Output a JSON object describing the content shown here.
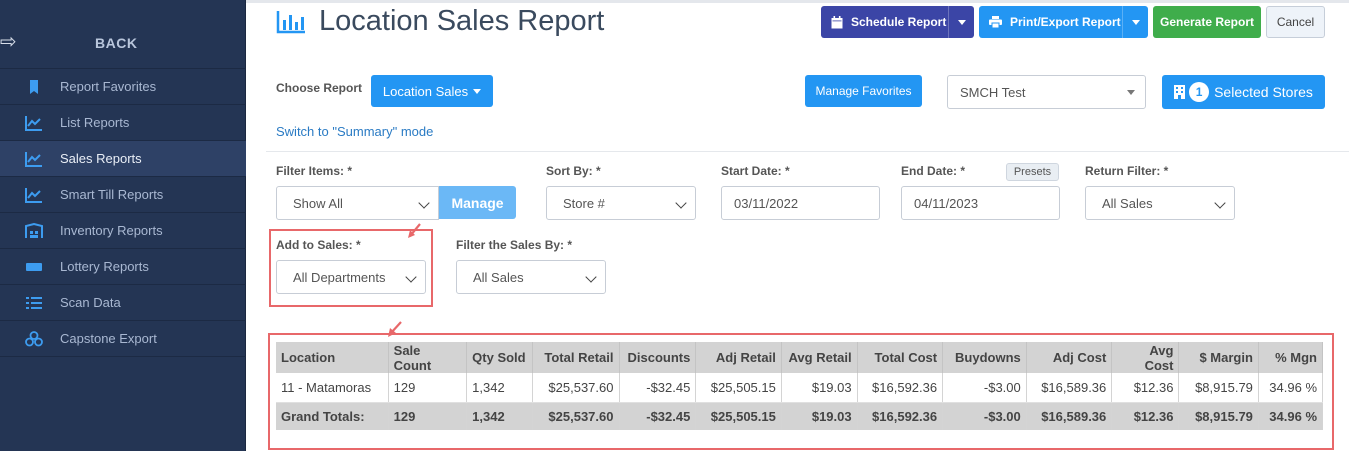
{
  "sidebar": {
    "back_label": "BACK",
    "items": [
      {
        "label": "Report Favorites",
        "icon": "bookmark-icon",
        "active": false
      },
      {
        "label": "List Reports",
        "icon": "line-chart-icon",
        "active": false
      },
      {
        "label": "Sales Reports",
        "icon": "line-chart-icon",
        "active": true
      },
      {
        "label": "Smart Till Reports",
        "icon": "line-chart-icon",
        "active": false
      },
      {
        "label": "Inventory Reports",
        "icon": "warehouse-icon",
        "active": false
      },
      {
        "label": "Lottery Reports",
        "icon": "ticket-icon",
        "active": false
      },
      {
        "label": "Scan Data",
        "icon": "list-icon",
        "active": false
      },
      {
        "label": "Capstone Export",
        "icon": "cubes-icon",
        "active": false
      }
    ]
  },
  "header": {
    "title": "Location Sales Report",
    "schedule_label": "Schedule Report",
    "print_label": "Print/Export Report",
    "generate_label": "Generate Report",
    "cancel_label": "Cancel"
  },
  "report": {
    "choose_label": "Choose Report",
    "report_type": "Location Sales",
    "manage_favorites_label": "Manage Favorites",
    "store_group": "SMCH Test",
    "selected_count": "1",
    "selected_stores_label": "Selected Stores",
    "switch_mode_link": "Switch to \"Summary\" mode"
  },
  "filters": {
    "filter_items_label": "Filter Items: *",
    "filter_items_value": "Show All",
    "manage_label": "Manage",
    "sort_by_label": "Sort By: *",
    "sort_by_value": "Store #",
    "start_date_label": "Start Date: *",
    "start_date_value": "03/11/2022",
    "end_date_label": "End Date: *",
    "end_date_value": "04/11/2023",
    "presets_label": "Presets",
    "return_filter_label": "Return Filter: *",
    "return_filter_value": "All Sales",
    "add_to_sales_label": "Add to Sales: *",
    "add_to_sales_value": "All Departments",
    "filter_sales_by_label": "Filter the Sales By: *",
    "filter_sales_by_value": "All Sales"
  },
  "table": {
    "columns": [
      "Location",
      "Sale Count",
      "Qty Sold",
      "Total Retail",
      "Discounts",
      "Adj Retail",
      "Avg Retail",
      "Total Cost",
      "Buydowns",
      "Adj Cost",
      "Avg Cost",
      "$ Margin",
      "% Mgn"
    ],
    "rows": [
      [
        "11 - Matamoras",
        "129",
        "1,342",
        "$25,537.60",
        "-$32.45",
        "$25,505.15",
        "$19.03",
        "$16,592.36",
        "-$3.00",
        "$16,589.36",
        "$12.36",
        "$8,915.79",
        "34.96 %"
      ]
    ],
    "totals": [
      "Grand Totals:",
      "129",
      "1,342",
      "$25,537.60",
      "-$32.45",
      "$25,505.15",
      "$19.03",
      "$16,592.36",
      "-$3.00",
      "$16,589.36",
      "$12.36",
      "$8,915.79",
      "34.96 %"
    ]
  },
  "colors": {
    "sidebar_bg": "#243554",
    "primary_blue": "#2396f3",
    "schedule_indigo": "#3b45a6",
    "generate_green": "#3fad4b",
    "highlight_red": "#e8686a"
  }
}
